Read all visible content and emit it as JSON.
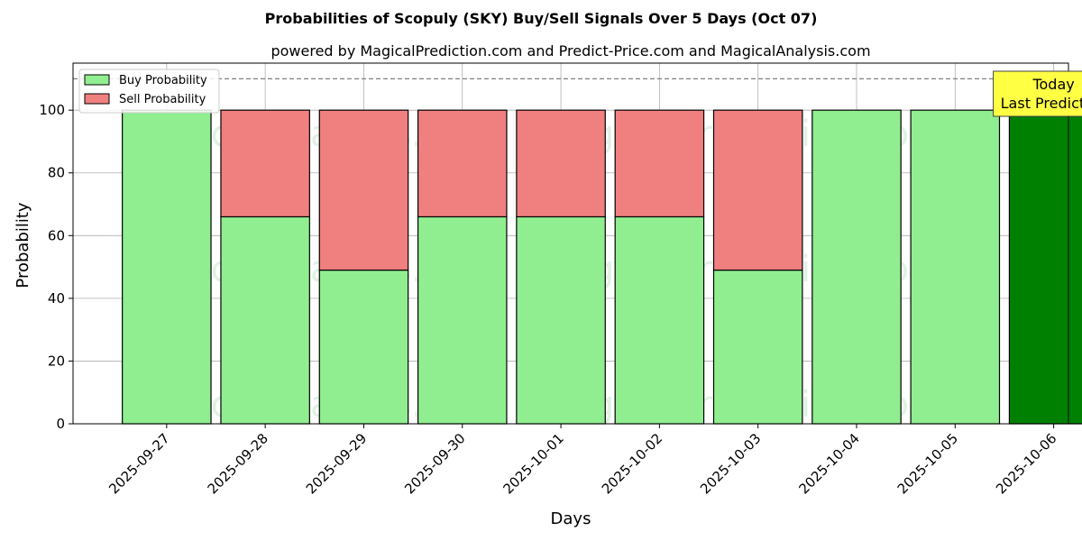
{
  "chart_data": {
    "type": "bar",
    "stacked": true,
    "title": "Probabilities of Scopuly (SKY) Buy/Sell Signals Over 5 Days (Oct 07)",
    "subtitle": "powered by MagicalPrediction.com and Predict-Price.com and MagicalAnalysis.com",
    "xlabel": "Days",
    "ylabel": "Probability",
    "ylim": [
      0,
      115
    ],
    "yticks": [
      0,
      20,
      40,
      60,
      80,
      100
    ],
    "grid": true,
    "legend_position": "top-left",
    "categories": [
      "2025-09-27",
      "2025-09-28",
      "2025-09-29",
      "2025-09-30",
      "2025-10-01",
      "2025-10-02",
      "2025-10-03",
      "2025-10-04",
      "2025-10-05",
      "2025-10-06"
    ],
    "series": [
      {
        "name": "Buy Probability",
        "color": "#90ee90",
        "values": [
          100,
          66,
          49,
          66,
          66,
          66,
          49,
          100,
          100,
          100
        ]
      },
      {
        "name": "Sell Probability",
        "color": "#f08080",
        "values": [
          0,
          34,
          51,
          34,
          34,
          34,
          51,
          0,
          0,
          0
        ]
      }
    ],
    "highlight": {
      "index": 9,
      "color": "#008000"
    },
    "reference_line": {
      "y": 110,
      "style": "dashed",
      "color": "#808080"
    },
    "annotation": {
      "lines": [
        "Today",
        "Last Prediction"
      ],
      "background": "#ffff44"
    },
    "watermarks": [
      "MagicalAnalysis.com",
      "MagicalPrediction.com"
    ]
  }
}
